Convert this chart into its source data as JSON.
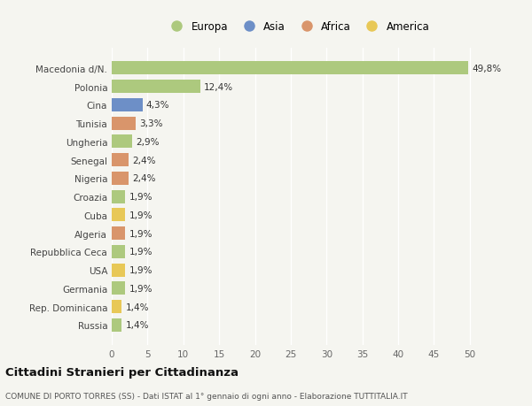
{
  "categories": [
    "Macedonia d/N.",
    "Polonia",
    "Cina",
    "Tunisia",
    "Ungheria",
    "Senegal",
    "Nigeria",
    "Croazia",
    "Cuba",
    "Algeria",
    "Repubblica Ceca",
    "USA",
    "Germania",
    "Rep. Dominicana",
    "Russia"
  ],
  "values": [
    49.8,
    12.4,
    4.3,
    3.3,
    2.9,
    2.4,
    2.4,
    1.9,
    1.9,
    1.9,
    1.9,
    1.9,
    1.9,
    1.4,
    1.4
  ],
  "labels": [
    "49,8%",
    "12,4%",
    "4,3%",
    "3,3%",
    "2,9%",
    "2,4%",
    "2,4%",
    "1,9%",
    "1,9%",
    "1,9%",
    "1,9%",
    "1,9%",
    "1,9%",
    "1,4%",
    "1,4%"
  ],
  "continents": [
    "Europa",
    "Europa",
    "Asia",
    "Africa",
    "Europa",
    "Africa",
    "Africa",
    "Europa",
    "America",
    "Africa",
    "Europa",
    "America",
    "Europa",
    "America",
    "Europa"
  ],
  "continent_colors": {
    "Europa": "#adc97e",
    "Asia": "#6d8fc7",
    "Africa": "#d9956b",
    "America": "#e8c857"
  },
  "legend_items": [
    "Europa",
    "Asia",
    "Africa",
    "America"
  ],
  "title": "Cittadini Stranieri per Cittadinanza",
  "subtitle": "COMUNE DI PORTO TORRES (SS) - Dati ISTAT al 1° gennaio di ogni anno - Elaborazione TUTTITALIA.IT",
  "xlim": [
    0,
    52
  ],
  "xticks": [
    0,
    5,
    10,
    15,
    20,
    25,
    30,
    35,
    40,
    45,
    50
  ],
  "background_color": "#f5f5f0",
  "bar_height": 0.72,
  "grid_color": "#ffffff",
  "axis_bg": "#f5f5f0"
}
